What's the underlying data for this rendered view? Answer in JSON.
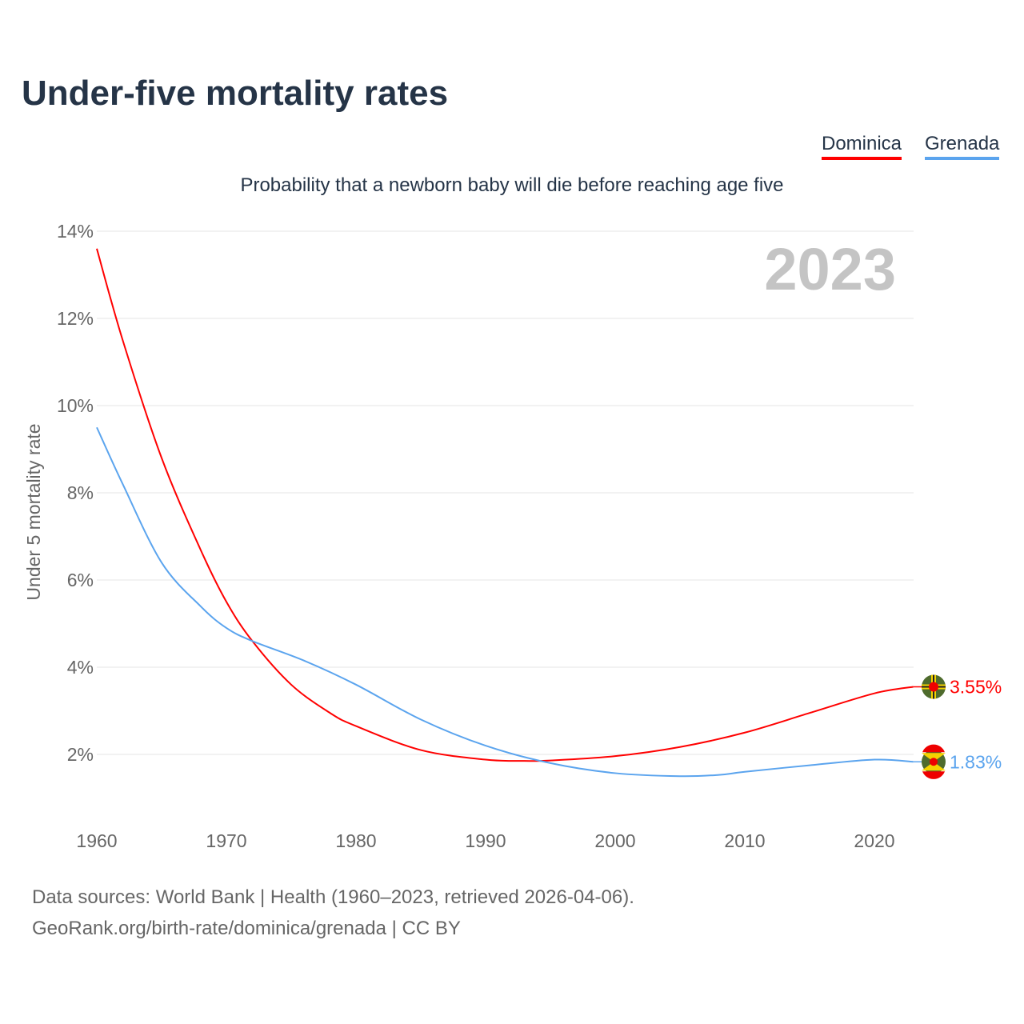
{
  "title": "Under-five mortality rates",
  "source_line1": "Data sources: World Bank | Health (1960–2023, retrieved 2026-04-06).",
  "source_line2": "GeoRank.org/birth-rate/dominica/grenada | CC BY",
  "chart_data": {
    "type": "line",
    "title": "Under-five mortality rates",
    "subtitle": "Probability that a newborn baby will die before reaching age five",
    "ylabel": "Under 5 mortality rate",
    "xlabel": "",
    "year_label": "2023",
    "ylim": [
      0,
      14
    ],
    "xlim": [
      1960,
      2023
    ],
    "yticks": [
      2,
      4,
      6,
      8,
      10,
      12,
      14
    ],
    "ytick_labels": [
      "2%",
      "4%",
      "6%",
      "8%",
      "10%",
      "12%",
      "14%"
    ],
    "xticks": [
      1960,
      1970,
      1980,
      1990,
      2000,
      2010,
      2020
    ],
    "xtick_labels": [
      "1960",
      "1970",
      "1980",
      "1990",
      "2000",
      "2010",
      "2020"
    ],
    "grid": true,
    "legend_placement": "top-right",
    "series": [
      {
        "name": "Dominica",
        "color": "#ff0000",
        "end_label": "3.55%",
        "x": [
          1960,
          1962,
          1965,
          1968,
          1970,
          1972,
          1975,
          1978,
          1980,
          1985,
          1990,
          1993,
          1995,
          2000,
          2005,
          2010,
          2015,
          2020,
          2023
        ],
        "y": [
          13.6,
          11.5,
          8.8,
          6.7,
          5.5,
          4.6,
          3.6,
          2.95,
          2.65,
          2.1,
          1.88,
          1.85,
          1.86,
          1.96,
          2.17,
          2.5,
          2.95,
          3.4,
          3.55
        ]
      },
      {
        "name": "Grenada",
        "color": "#5ba4ee",
        "end_label": "1.83%",
        "x": [
          1960,
          1962,
          1965,
          1968,
          1970,
          1972,
          1976,
          1980,
          1985,
          1990,
          1995,
          2000,
          2005,
          2008,
          2010,
          2015,
          2020,
          2023
        ],
        "y": [
          9.5,
          8.2,
          6.4,
          5.4,
          4.9,
          4.6,
          4.15,
          3.6,
          2.8,
          2.2,
          1.8,
          1.57,
          1.5,
          1.53,
          1.6,
          1.75,
          1.88,
          1.83
        ]
      }
    ]
  }
}
